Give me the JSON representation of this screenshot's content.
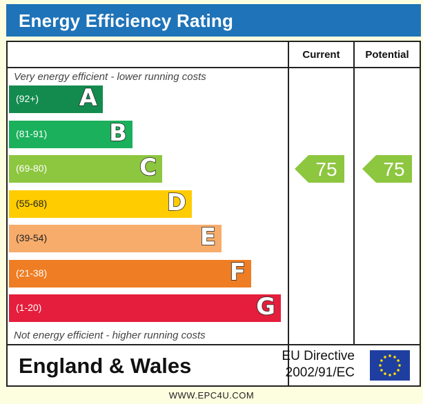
{
  "title": "Energy Efficiency Rating",
  "columns": {
    "current": "Current",
    "potential": "Potential"
  },
  "notes": {
    "top": "Very energy efficient - lower running costs",
    "bottom": "Not energy efficient - higher running costs"
  },
  "chart_data": {
    "type": "bar",
    "title": "Energy Efficiency Rating",
    "categories": [
      "A",
      "B",
      "C",
      "D",
      "E",
      "F",
      "G"
    ],
    "ranges": [
      "(92+)",
      "(81-91)",
      "(69-80)",
      "(55-68)",
      "(39-54)",
      "(21-38)",
      "(1-20)"
    ],
    "band_colors": [
      "#138b4f",
      "#1bb05c",
      "#8dc63f",
      "#ffcc00",
      "#f7ac6b",
      "#ef7d23",
      "#e41e3c"
    ],
    "current": 75,
    "potential": 75,
    "rating_color": "#8dc63f"
  },
  "footer": {
    "region": "England & Wales",
    "directive_line1": "EU Directive",
    "directive_line2": "2002/91/EC"
  },
  "website": "WWW.EPC4U.COM"
}
